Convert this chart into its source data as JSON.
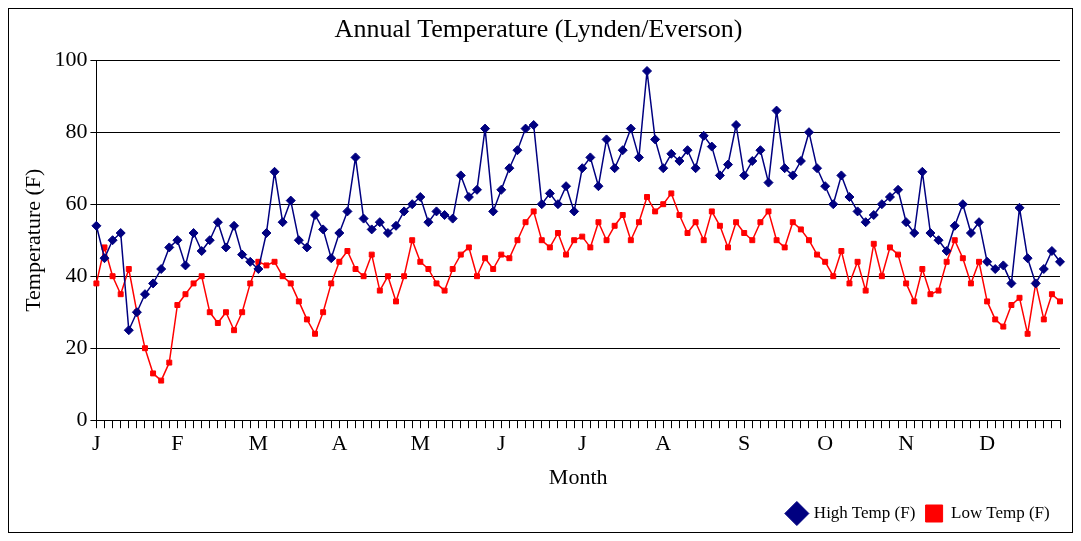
{
  "chart_data": {
    "type": "line",
    "title": "Annual Temperature (Lynden/Everson)",
    "xlabel": "Month",
    "ylabel": "Temperature (F)",
    "categories": [
      "J",
      null,
      null,
      null,
      null,
      null,
      null,
      null,
      null,
      null,
      "F",
      null,
      null,
      null,
      null,
      null,
      null,
      null,
      null,
      null,
      "M",
      null,
      null,
      null,
      null,
      null,
      null,
      null,
      null,
      null,
      "A",
      null,
      null,
      null,
      null,
      null,
      null,
      null,
      null,
      null,
      "M",
      null,
      null,
      null,
      null,
      null,
      null,
      null,
      null,
      null,
      "J",
      null,
      null,
      null,
      null,
      null,
      null,
      null,
      null,
      null,
      "J",
      null,
      null,
      null,
      null,
      null,
      null,
      null,
      null,
      null,
      "A",
      null,
      null,
      null,
      null,
      null,
      null,
      null,
      null,
      null,
      "S",
      null,
      null,
      null,
      null,
      null,
      null,
      null,
      null,
      null,
      "O",
      null,
      null,
      null,
      null,
      null,
      null,
      null,
      null,
      null,
      "N",
      null,
      null,
      null,
      null,
      null,
      null,
      null,
      null,
      null,
      "D",
      null,
      null,
      null,
      null,
      null,
      null,
      null,
      null,
      null
    ],
    "series": [
      {
        "name": "High Temp (F)",
        "color": "#000080",
        "marker": "diamond",
        "values": [
          54,
          45,
          50,
          52,
          25,
          30,
          35,
          38,
          42,
          48,
          50,
          43,
          52,
          47,
          50,
          55,
          48,
          54,
          46,
          44,
          42,
          52,
          69,
          55,
          61,
          50,
          48,
          57,
          53,
          45,
          52,
          58,
          73,
          56,
          53,
          55,
          52,
          54,
          58,
          60,
          62,
          55,
          58,
          57,
          56,
          68,
          62,
          64,
          81,
          58,
          64,
          70,
          75,
          81,
          82,
          60,
          63,
          60,
          65,
          58,
          70,
          73,
          65,
          78,
          70,
          75,
          81,
          73,
          97,
          78,
          70,
          74,
          72,
          75,
          70,
          79,
          76,
          68,
          71,
          82,
          68,
          72,
          75,
          66,
          86,
          70,
          68,
          72,
          80,
          70,
          65,
          60,
          68,
          62,
          58,
          55,
          57,
          60,
          62,
          64,
          55,
          52,
          69,
          52,
          50,
          47,
          54,
          60,
          52,
          55,
          44,
          42,
          43,
          38,
          59,
          45,
          38,
          42,
          47,
          44
        ]
      },
      {
        "name": "Low Temp (F)",
        "color": "#ff0000",
        "marker": "square",
        "values": [
          38,
          48,
          40,
          35,
          42,
          30,
          20,
          13,
          11,
          16,
          32,
          35,
          38,
          40,
          30,
          27,
          30,
          25,
          30,
          38,
          44,
          43,
          44,
          40,
          38,
          33,
          28,
          24,
          30,
          38,
          44,
          47,
          42,
          40,
          46,
          36,
          40,
          33,
          40,
          50,
          44,
          42,
          38,
          36,
          42,
          46,
          48,
          40,
          45,
          42,
          46,
          45,
          50,
          55,
          58,
          50,
          48,
          52,
          46,
          50,
          51,
          48,
          55,
          50,
          54,
          57,
          50,
          55,
          62,
          58,
          60,
          63,
          57,
          52,
          55,
          50,
          58,
          54,
          48,
          55,
          52,
          50,
          55,
          58,
          50,
          48,
          55,
          53,
          50,
          46,
          44,
          40,
          47,
          38,
          44,
          36,
          49,
          40,
          48,
          46,
          38,
          33,
          42,
          35,
          36,
          44,
          50,
          45,
          38,
          44,
          33,
          28,
          26,
          32,
          34,
          24,
          38,
          28,
          35,
          33
        ]
      }
    ],
    "ylim": [
      0,
      100
    ],
    "yticks": [
      0,
      20,
      40,
      60,
      80,
      100
    ],
    "grid": "y",
    "legend": "bottom right",
    "line_style": "solid"
  }
}
